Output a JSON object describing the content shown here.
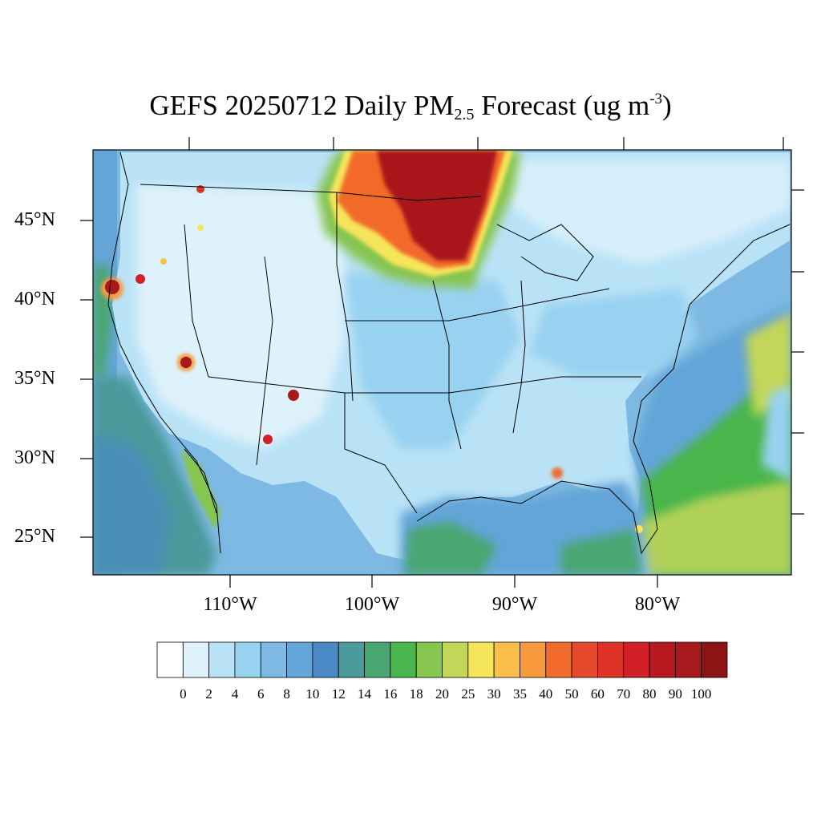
{
  "title": {
    "prefix": "GEFS 20250712 Daily PM",
    "subscript": "2.5",
    "middle": " Forecast (ug m",
    "superscript": "-3",
    "suffix": ")"
  },
  "map": {
    "region": "Contiguous United States",
    "projection": "Lambert conformal",
    "lat_labels": [
      "45°N",
      "40°N",
      "35°N",
      "30°N",
      "25°N"
    ],
    "lon_labels": [
      "110°W",
      "100°W",
      "90°W",
      "80°W"
    ],
    "features": [
      "smoke plume over central Canada, Minnesota and North Dakota (>100)",
      "wildfire hotspots in Washington, Oregon, northern California, Nevada, Arizona, New Mexico",
      "coastal maxima near Mobile Bay and southern Florida"
    ]
  },
  "colorbar": {
    "labels": [
      "0",
      "2",
      "4",
      "6",
      "8",
      "10",
      "12",
      "14",
      "16",
      "18",
      "20",
      "25",
      "30",
      "35",
      "40",
      "50",
      "60",
      "70",
      "80",
      "90",
      "100"
    ],
    "colors": [
      "#ffffff",
      "#def2fb",
      "#b9e2f6",
      "#98d2f1",
      "#7db9e2",
      "#64a5d8",
      "#4a88c6",
      "#4b9a9c",
      "#49a671",
      "#4ab54c",
      "#86c54f",
      "#c3d65a",
      "#f5e55a",
      "#f9bd4a",
      "#f79a3e",
      "#f26a2c",
      "#e5482a",
      "#dc3326",
      "#d22028",
      "#b8191f",
      "#a8191d",
      "#8c1414"
    ]
  }
}
